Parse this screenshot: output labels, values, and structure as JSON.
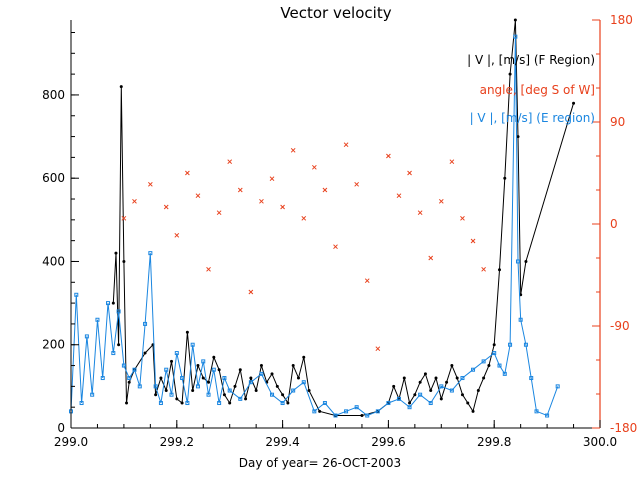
{
  "chart_data": {
    "type": "scatter",
    "title": "Vector velocity",
    "xlabel": "Day of year= 26-OCT-2003",
    "xlim": [
      299.0,
      300.0
    ],
    "ylim_left": [
      0,
      980
    ],
    "ylim_right": [
      -180,
      180
    ],
    "x_ticks": [
      "299.0",
      "299.2",
      "299.4",
      "299.6",
      "299.8",
      "300.0"
    ],
    "y_ticks_left": [
      "0",
      "200",
      "400",
      "600",
      "800"
    ],
    "y_ticks_right": [
      "-180",
      "-90",
      "0",
      "90",
      "180"
    ],
    "colors": {
      "axis": "#000000",
      "f_region": "#000000",
      "angle": "#e8401c",
      "e_region": "#1a86e0"
    },
    "legend": [
      {
        "label": "| V |, [m/s] (F Region)",
        "color": "#000000"
      },
      {
        "label": "angle, [deg S of W]",
        "color": "#e8401c"
      },
      {
        "label": "| V |, [m/s] (E region)",
        "color": "#1a86e0"
      }
    ],
    "series": [
      {
        "name": "| V |, [m/s] (F Region)",
        "axis": "left",
        "style": "line-dots",
        "x": [
          299.08,
          299.085,
          299.09,
          299.095,
          299.1,
          299.105,
          299.11,
          299.12,
          299.14,
          299.155,
          299.16,
          299.17,
          299.18,
          299.19,
          299.2,
          299.21,
          299.22,
          299.23,
          299.24,
          299.25,
          299.26,
          299.27,
          299.28,
          299.29,
          299.3,
          299.31,
          299.32,
          299.33,
          299.34,
          299.35,
          299.36,
          299.37,
          299.38,
          299.39,
          299.4,
          299.41,
          299.42,
          299.43,
          299.44,
          299.45,
          299.47,
          299.5,
          299.55,
          299.58,
          299.6,
          299.61,
          299.62,
          299.63,
          299.64,
          299.65,
          299.66,
          299.67,
          299.68,
          299.69,
          299.7,
          299.71,
          299.72,
          299.73,
          299.74,
          299.75,
          299.76,
          299.77,
          299.78,
          299.79,
          299.8,
          299.81,
          299.82,
          299.83,
          299.84,
          299.845,
          299.85,
          299.86,
          299.95
        ],
        "y": [
          300,
          420,
          200,
          820,
          400,
          60,
          110,
          140,
          180,
          200,
          80,
          120,
          90,
          160,
          70,
          60,
          230,
          90,
          150,
          120,
          110,
          170,
          140,
          80,
          60,
          100,
          140,
          70,
          120,
          90,
          150,
          110,
          130,
          100,
          80,
          60,
          150,
          120,
          170,
          90,
          40,
          30,
          30,
          40,
          60,
          100,
          70,
          120,
          60,
          80,
          110,
          130,
          90,
          120,
          70,
          110,
          150,
          120,
          80,
          60,
          40,
          90,
          120,
          150,
          200,
          380,
          600,
          850,
          980,
          700,
          320,
          400,
          780
        ]
      },
      {
        "name": "angle, [deg S of W]",
        "axis": "right",
        "style": "markers-x",
        "x": [
          299.1,
          299.12,
          299.15,
          299.18,
          299.2,
          299.22,
          299.24,
          299.26,
          299.28,
          299.3,
          299.32,
          299.34,
          299.36,
          299.38,
          299.4,
          299.42,
          299.44,
          299.46,
          299.48,
          299.5,
          299.52,
          299.54,
          299.56,
          299.58,
          299.6,
          299.62,
          299.64,
          299.66,
          299.68,
          299.7,
          299.72,
          299.74,
          299.76,
          299.78
        ],
        "y": [
          5,
          20,
          35,
          15,
          -10,
          45,
          25,
          -40,
          10,
          55,
          30,
          -60,
          20,
          40,
          15,
          65,
          5,
          50,
          30,
          -20,
          70,
          35,
          -50,
          -110,
          60,
          25,
          45,
          10,
          -30,
          20,
          55,
          5,
          -15,
          -40
        ]
      },
      {
        "name": "| V |, [m/s] (E region)",
        "axis": "left",
        "style": "line-squares",
        "x": [
          299.0,
          299.01,
          299.02,
          299.03,
          299.04,
          299.05,
          299.06,
          299.07,
          299.08,
          299.09,
          299.1,
          299.11,
          299.12,
          299.13,
          299.14,
          299.15,
          299.16,
          299.17,
          299.18,
          299.19,
          299.2,
          299.21,
          299.22,
          299.23,
          299.24,
          299.25,
          299.26,
          299.27,
          299.28,
          299.29,
          299.3,
          299.32,
          299.34,
          299.36,
          299.38,
          299.4,
          299.42,
          299.44,
          299.46,
          299.48,
          299.5,
          299.52,
          299.54,
          299.56,
          299.58,
          299.6,
          299.62,
          299.64,
          299.66,
          299.68,
          299.7,
          299.72,
          299.74,
          299.76,
          299.78,
          299.8,
          299.81,
          299.82,
          299.83,
          299.84,
          299.845,
          299.85,
          299.86,
          299.87,
          299.88,
          299.9,
          299.92
        ],
        "y": [
          40,
          320,
          60,
          220,
          80,
          260,
          120,
          300,
          180,
          280,
          150,
          120,
          140,
          100,
          250,
          420,
          100,
          60,
          140,
          80,
          180,
          120,
          60,
          200,
          100,
          160,
          80,
          140,
          60,
          120,
          90,
          70,
          110,
          130,
          80,
          60,
          90,
          110,
          40,
          60,
          30,
          40,
          50,
          30,
          40,
          60,
          70,
          50,
          80,
          60,
          100,
          90,
          120,
          140,
          160,
          180,
          150,
          130,
          200,
          940,
          400,
          260,
          200,
          120,
          40,
          30,
          100
        ]
      }
    ]
  }
}
